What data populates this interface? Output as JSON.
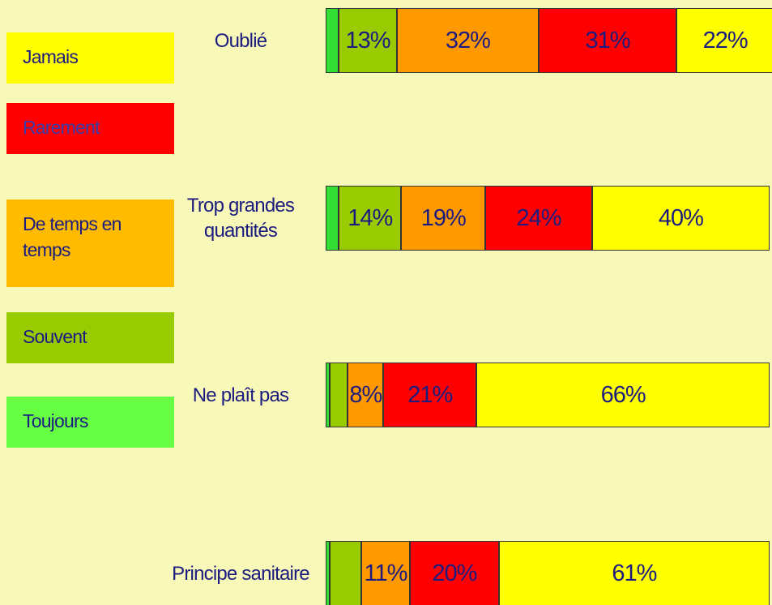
{
  "chart_data": {
    "type": "stacked-bar",
    "categories": [
      "Oublié",
      "Trop grandes quantités",
      "Ne plaît pas",
      "Principe sanitaire"
    ],
    "xlim": [
      0,
      100
    ],
    "series": [
      {
        "name": "Toujours",
        "color": "#33dd33",
        "values": [
          3,
          3,
          1,
          1
        ],
        "value_labels": [
          null,
          null,
          null,
          null
        ]
      },
      {
        "name": "Souvent",
        "color": "#99cc00",
        "values": [
          13,
          14,
          4,
          7
        ],
        "value_labels": [
          "13%",
          "14%",
          null,
          null
        ]
      },
      {
        "name": "De temps en temps",
        "color": "#ff9900",
        "values": [
          32,
          19,
          8,
          11
        ],
        "value_labels": [
          "32%",
          "19%",
          "8%",
          "11%"
        ]
      },
      {
        "name": "Rarement",
        "color": "#ff0000",
        "values": [
          31,
          24,
          21,
          20
        ],
        "value_labels": [
          "31%",
          "24%",
          "21%",
          "20%"
        ]
      },
      {
        "name": "Jamais",
        "color": "#ffff00",
        "values": [
          22,
          40,
          66,
          61
        ],
        "value_labels": [
          "22%",
          "40%",
          "66%",
          "61%"
        ]
      }
    ]
  }
}
